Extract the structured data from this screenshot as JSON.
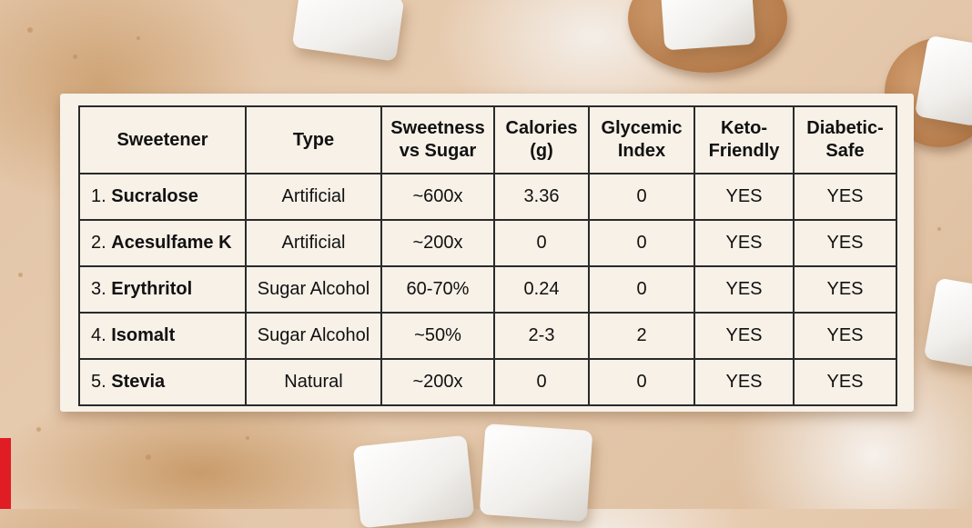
{
  "table": {
    "headers": [
      "Sweetener",
      "Type",
      "Sweetness vs Sugar",
      "Calories (g)",
      "Glycemic Index",
      "Keto-Friendly",
      "Diabetic-Safe"
    ],
    "rows": [
      {
        "num": "1.",
        "name": "Sucralose",
        "type": "Artificial",
        "sweetness": "~600x",
        "calories": "3.36",
        "gi": "0",
        "keto": "YES",
        "diabetic": "YES"
      },
      {
        "num": "2.",
        "name": "Acesulfame K",
        "type": "Artificial",
        "sweetness": "~200x",
        "calories": "0",
        "gi": "0",
        "keto": "YES",
        "diabetic": "YES"
      },
      {
        "num": "3.",
        "name": "Erythritol",
        "type": "Sugar Alcohol",
        "sweetness": "60-70%",
        "calories": "0.24",
        "gi": "0",
        "keto": "YES",
        "diabetic": "YES"
      },
      {
        "num": "4.",
        "name": "Isomalt",
        "type": "Sugar Alcohol",
        "sweetness": "~50%",
        "calories": "2-3",
        "gi": "2",
        "keto": "YES",
        "diabetic": "YES"
      },
      {
        "num": "5.",
        "name": "Stevia",
        "type": "Natural",
        "sweetness": "~200x",
        "calories": "0",
        "gi": "0",
        "keto": "YES",
        "diabetic": "YES"
      }
    ]
  },
  "colors": {
    "card": "#f7f1e8",
    "border": "#2a2a2a",
    "accent_tab": "#e01c24"
  }
}
